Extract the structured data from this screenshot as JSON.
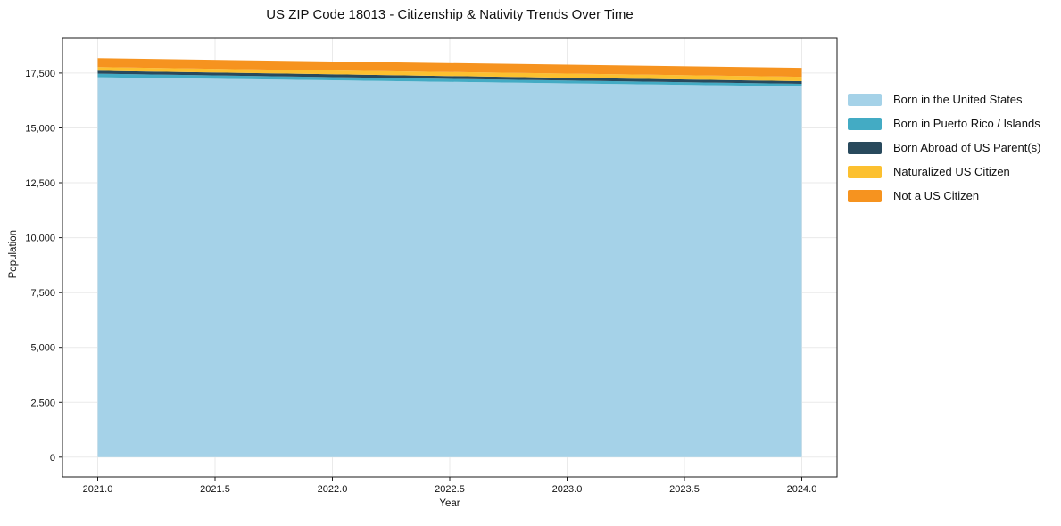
{
  "chart_data": {
    "type": "area",
    "stacked": true,
    "title": "US ZIP Code 18013 - Citizenship & Nativity Trends Over Time",
    "xlabel": "Year",
    "ylabel": "Population",
    "x": [
      2021,
      2022,
      2023,
      2024
    ],
    "series": [
      {
        "name": "Born in the United States",
        "color": "#a5d2e8",
        "values": [
          17310,
          17170,
          17030,
          16890
        ]
      },
      {
        "name": "Born in Puerto Rico / Islands",
        "color": "#43abc4",
        "values": [
          160,
          145,
          130,
          120
        ]
      },
      {
        "name": "Born Abroad of US Parent(s)",
        "color": "#28495c",
        "values": [
          135,
          130,
          125,
          120
        ]
      },
      {
        "name": "Naturalized US Citizen",
        "color": "#fcc02f",
        "values": [
          165,
          175,
          190,
          200
        ]
      },
      {
        "name": "Not a US Citizen",
        "color": "#f6931f",
        "values": [
          405,
          405,
          405,
          405
        ]
      }
    ],
    "xticks": [
      2021.0,
      2021.5,
      2022.0,
      2022.5,
      2023.0,
      2023.5,
      2024.0
    ],
    "yticks": [
      0,
      2500,
      5000,
      7500,
      10000,
      12500,
      15000,
      17500
    ],
    "xlim": [
      2020.85,
      2024.15
    ],
    "ylim": [
      -900,
      19080
    ],
    "grid": true,
    "legend_position": "right-outside",
    "colors": {
      "background": "#ffffff",
      "grid": "#eaeaea",
      "spine": "#1a1a1a",
      "text": "#111111"
    }
  }
}
